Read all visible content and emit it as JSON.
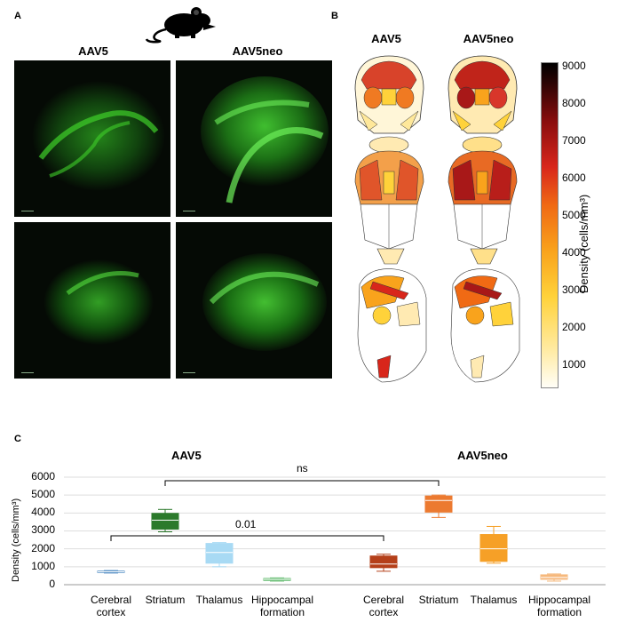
{
  "panels": {
    "a_letter": "A",
    "b_letter": "B",
    "c_letter": "C"
  },
  "panel_a": {
    "col_titles": [
      "AAV5",
      "AAV5neo"
    ],
    "icons": [
      "mouse-icon"
    ]
  },
  "panel_b": {
    "col_titles": [
      "AAV5",
      "AAV5neo"
    ],
    "colorbar": {
      "label": "Density (cells/mm³)",
      "ticks": [
        "9000",
        "8000",
        "7000",
        "6000",
        "5000",
        "4000",
        "3000",
        "2000",
        "1000"
      ],
      "colors": [
        "#fffef7",
        "#ffd23a",
        "#f06a14",
        "#d8261b",
        "#2a0404"
      ]
    }
  },
  "chart_data": {
    "type": "box",
    "groups": [
      "AAV5",
      "AAV5neo"
    ],
    "categories": [
      "Cerebral cortex",
      "Striatum",
      "Thalamus",
      "Hippocampal formation"
    ],
    "ylabel": "Density (cells/mm³)",
    "ylim": [
      0,
      6000
    ],
    "yticks": [
      0,
      1000,
      2000,
      3000,
      4000,
      5000,
      6000
    ],
    "series": [
      {
        "name": "AAV5",
        "colors": [
          "#5b93c7",
          "#2c7a2c",
          "#a8daf4",
          "#6fc07a"
        ],
        "boxes": [
          {
            "min": 650,
            "q1": 680,
            "median": 720,
            "q3": 760,
            "max": 790
          },
          {
            "min": 2950,
            "q1": 3100,
            "median": 3600,
            "q3": 3980,
            "max": 4200
          },
          {
            "min": 1000,
            "q1": 1200,
            "median": 1800,
            "q3": 2300,
            "max": 2350
          },
          {
            "min": 200,
            "q1": 230,
            "median": 300,
            "q3": 350,
            "max": 380
          }
        ]
      },
      {
        "name": "AAV5neo",
        "colors": [
          "#b5401a",
          "#ec7a30",
          "#f6a027",
          "#f6b97d"
        ],
        "boxes": [
          {
            "min": 750,
            "q1": 950,
            "median": 1150,
            "q3": 1600,
            "max": 1700
          },
          {
            "min": 3750,
            "q1": 4050,
            "median": 4700,
            "q3": 4950,
            "max": 5000
          },
          {
            "min": 1200,
            "q1": 1300,
            "median": 2000,
            "q3": 2800,
            "max": 3250
          },
          {
            "min": 200,
            "q1": 300,
            "median": 400,
            "q3": 550,
            "max": 600
          }
        ]
      }
    ],
    "annotations": [
      {
        "text": "ns",
        "from": "AAV5 Striatum",
        "to": "AAV5neo Striatum"
      },
      {
        "text": "0.01",
        "from": "AAV5 Cerebral cortex",
        "to": "AAV5neo Cerebral cortex"
      }
    ],
    "grid": true
  }
}
